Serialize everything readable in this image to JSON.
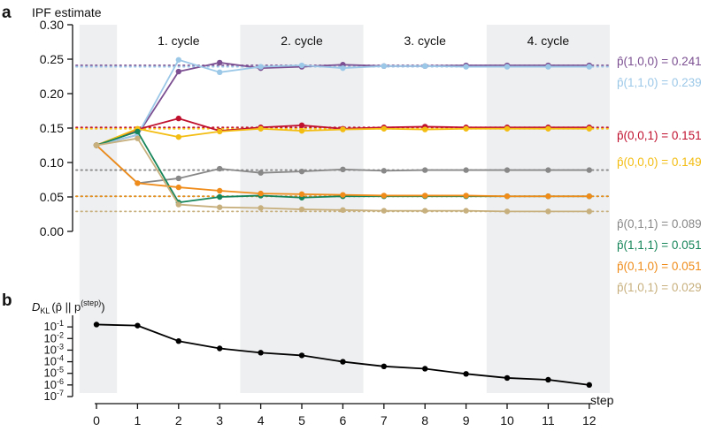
{
  "panels": {
    "a": "a",
    "b": "b"
  },
  "chart_data": [
    {
      "type": "line",
      "panel": "a",
      "title": "IPF estimate",
      "xlabel": "",
      "ylabel": "",
      "x": [
        0,
        1,
        2,
        3,
        4,
        5,
        6,
        7,
        8,
        9,
        10,
        11,
        12
      ],
      "xlim": [
        0,
        12
      ],
      "ylim": [
        0,
        0.3
      ],
      "yticks": [
        0.0,
        0.05,
        0.1,
        0.15,
        0.2,
        0.25,
        0.3
      ],
      "ytick_labels": [
        "0.00",
        "0.05",
        "0.10",
        "0.15",
        "0.20",
        "0.25",
        "0.30"
      ],
      "grid": false,
      "cycles": [
        {
          "label": "1. cycle",
          "x_range": [
            0.5,
            3.5
          ],
          "shaded": false
        },
        {
          "label": "2. cycle",
          "x_range": [
            3.5,
            6.5
          ],
          "shaded": true
        },
        {
          "label": "3. cycle",
          "x_range": [
            6.5,
            9.5
          ],
          "shaded": false
        },
        {
          "label": "4. cycle",
          "x_range": [
            9.5,
            12.5
          ],
          "shaded": true
        }
      ],
      "initial_shade": [
        -0.5,
        0.5
      ],
      "series": [
        {
          "name": "p̂(1,0,0) = 0.241",
          "color": "#7b4f91",
          "target": 0.241,
          "values": [
            0.125,
            0.14,
            0.232,
            0.245,
            0.237,
            0.239,
            0.242,
            0.24,
            0.24,
            0.241,
            0.241,
            0.241,
            0.241
          ]
        },
        {
          "name": "p̂(1,1,0) = 0.239",
          "color": "#9cc8e8",
          "target": 0.239,
          "values": [
            0.125,
            0.14,
            0.249,
            0.231,
            0.239,
            0.241,
            0.237,
            0.24,
            0.24,
            0.239,
            0.239,
            0.239,
            0.239
          ]
        },
        {
          "name": "p̂(0,0,1) = 0.151",
          "color": "#c0112f",
          "target": 0.151,
          "values": [
            0.125,
            0.148,
            0.164,
            0.146,
            0.151,
            0.154,
            0.149,
            0.151,
            0.152,
            0.151,
            0.151,
            0.151,
            0.151
          ]
        },
        {
          "name": "p̂(0,0,0) = 0.149",
          "color": "#f3bd12",
          "target": 0.149,
          "values": [
            0.125,
            0.149,
            0.137,
            0.145,
            0.149,
            0.146,
            0.148,
            0.149,
            0.148,
            0.149,
            0.149,
            0.149,
            0.149
          ]
        },
        {
          "name": "p̂(0,1,1) = 0.089",
          "color": "#888888",
          "target": 0.089,
          "values": [
            0.125,
            0.07,
            0.077,
            0.091,
            0.085,
            0.087,
            0.09,
            0.088,
            0.089,
            0.089,
            0.089,
            0.089,
            0.089
          ]
        },
        {
          "name": "p̂(1,1,1) = 0.051",
          "color": "#16855a",
          "target": 0.051,
          "values": [
            0.125,
            0.145,
            0.042,
            0.05,
            0.052,
            0.049,
            0.051,
            0.051,
            0.051,
            0.051,
            0.051,
            0.051,
            0.051
          ]
        },
        {
          "name": "p̂(0,1,0) = 0.051",
          "color": "#ef8c1a",
          "target": 0.051,
          "values": [
            0.125,
            0.07,
            0.064,
            0.059,
            0.055,
            0.054,
            0.053,
            0.052,
            0.052,
            0.052,
            0.051,
            0.051,
            0.051
          ]
        },
        {
          "name": "p̂(1,0,1) = 0.029",
          "color": "#c8b07e",
          "target": 0.029,
          "values": [
            0.125,
            0.135,
            0.039,
            0.035,
            0.034,
            0.032,
            0.031,
            0.03,
            0.03,
            0.03,
            0.029,
            0.029,
            0.029
          ]
        }
      ]
    },
    {
      "type": "line",
      "panel": "b",
      "title": "",
      "ylabel": "D_KL(p̂ || p^(step))",
      "ylabel_parts": {
        "d": "D",
        "sub": "KL",
        "arg": "(p̂ || p",
        "sup": "(step)",
        "close": ")"
      },
      "xlabel": "step",
      "yscale": "log",
      "ylim": [
        1e-07,
        1
      ],
      "ytick_exponents": [
        -1,
        -2,
        -3,
        -4,
        -5,
        -6,
        -7
      ],
      "ytick_base": "10",
      "xticks": [
        0,
        1,
        2,
        3,
        4,
        5,
        6,
        7,
        8,
        9,
        10,
        11,
        12
      ],
      "xtick_labels": [
        "0",
        "1",
        "2",
        "3",
        "4",
        "5",
        "6",
        "7",
        "8",
        "9",
        "10",
        "11",
        "12"
      ],
      "grid": false,
      "series": [
        {
          "name": "",
          "color": "#000000",
          "x": [
            0,
            1,
            2,
            3,
            4,
            5,
            6,
            7,
            8,
            9,
            10,
            11,
            12
          ],
          "values": [
            0.16,
            0.13,
            0.006,
            0.0014,
            0.0006,
            0.00035,
            0.0001,
            4e-05,
            2.5e-05,
            9e-06,
            4e-06,
            2.8e-06,
            1e-06
          ]
        }
      ]
    }
  ]
}
